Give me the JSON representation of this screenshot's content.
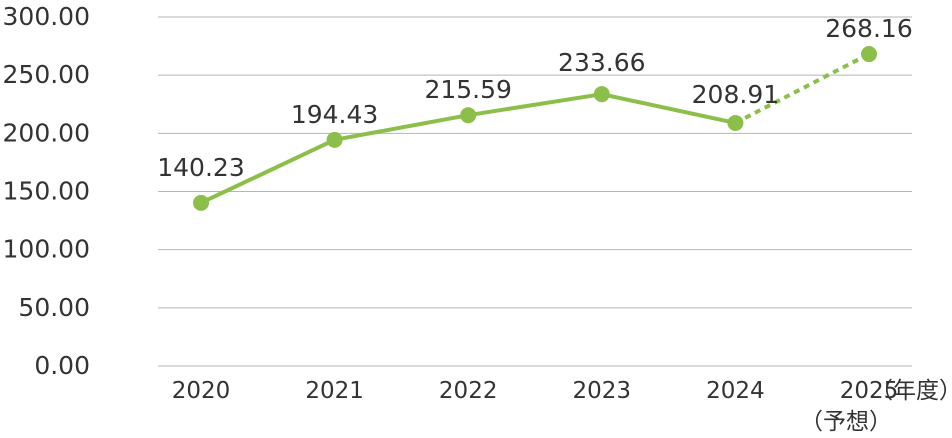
{
  "chart_data": {
    "type": "line",
    "categories": [
      "2020",
      "2021",
      "2022",
      "2023",
      "2024",
      "2025"
    ],
    "x_unit_label": "（年度）",
    "x_forecast_label": "（予想）",
    "values": [
      140.23,
      194.43,
      215.59,
      233.66,
      208.91,
      268.16
    ],
    "data_labels": [
      "140.23",
      "194.43",
      "215.59",
      "233.66",
      "208.91",
      "268.16"
    ],
    "forecast_index": 5,
    "yticks": [
      "0.00",
      "50.00",
      "100.00",
      "150.00",
      "200.00",
      "250.00",
      "300.00"
    ],
    "ylim": [
      0,
      300
    ],
    "grid": true,
    "colors": {
      "line": "#8cbf4a",
      "grid": "#b5b5b5",
      "text": "#333333"
    }
  }
}
